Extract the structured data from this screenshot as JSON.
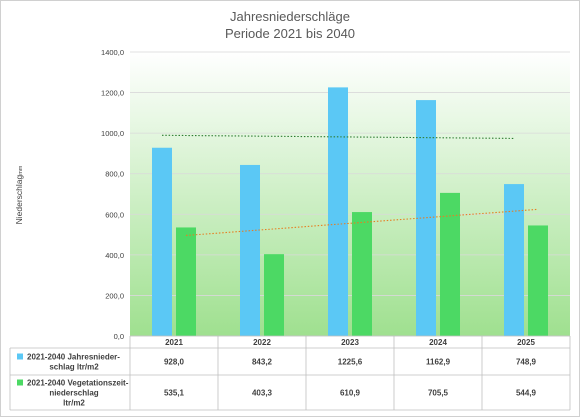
{
  "chart_data": {
    "type": "bar",
    "title": "Jahresniederschläge",
    "subtitle": "Periode 2021 bis 2040",
    "ylabel": "Niederschlag",
    "ylabel_unit": "mm",
    "ylim": [
      0,
      1400
    ],
    "yticks": [
      "0,0",
      "200,0",
      "400,0",
      "600,0",
      "800,0",
      "1000,0",
      "1200,0",
      "1400,0"
    ],
    "categories": [
      "2021",
      "2022",
      "2023",
      "2024",
      "2025"
    ],
    "series": [
      {
        "name": "2021-2040 Jahresnieder-schlag ltr/m2",
        "legend_lines": [
          "2021-2040 Jahresnieder-",
          "schlag ltr/m2"
        ],
        "color": "#5BC8F5",
        "values": [
          928.0,
          843.2,
          1225.6,
          1162.9,
          748.9
        ],
        "labels": [
          "928,0",
          "843,2",
          "1225,6",
          "1162,9",
          "748,9"
        ],
        "trendline": {
          "color": "#2E7D32",
          "style": "dotted"
        }
      },
      {
        "name": "2021-2040 Vegetationszeit-niederschlag ltr/m2",
        "legend_lines": [
          "2021-2040 Vegetationszeit-",
          "niederschlag",
          "ltr/m2"
        ],
        "color": "#4CD964",
        "values": [
          535.1,
          403.3,
          610.9,
          705.5,
          544.9
        ],
        "labels": [
          "535,1",
          "403,3",
          "610,9",
          "705,5",
          "544,9"
        ],
        "trendline": {
          "color": "#E67E22",
          "style": "dotted"
        }
      }
    ],
    "data_table": true,
    "grid": true
  }
}
